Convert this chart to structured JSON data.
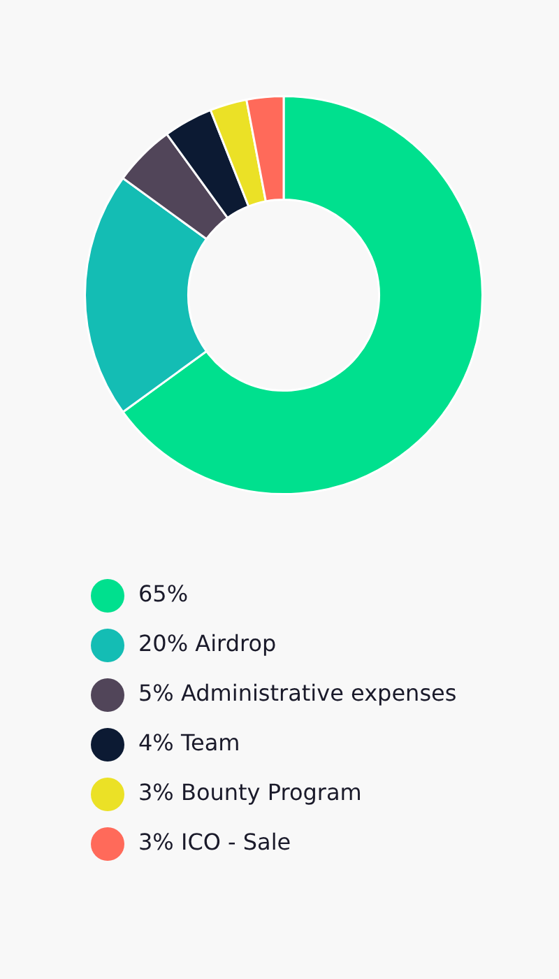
{
  "chart_data": {
    "type": "donut",
    "categories": [
      null,
      "Airdrop",
      "Administrative expenses",
      "Team",
      "Bounty Program",
      "ICO - Sale"
    ],
    "values": [
      65,
      20,
      5,
      4,
      3,
      3
    ],
    "value_labels": [
      "65%",
      "20%",
      "5%",
      "4%",
      "3%",
      "3%"
    ],
    "colors": [
      "#00e08e",
      "#14bdb4",
      "#514559",
      "#0c1a33",
      "#ebe126",
      "#ff6a5a"
    ],
    "legend": "bottom"
  }
}
